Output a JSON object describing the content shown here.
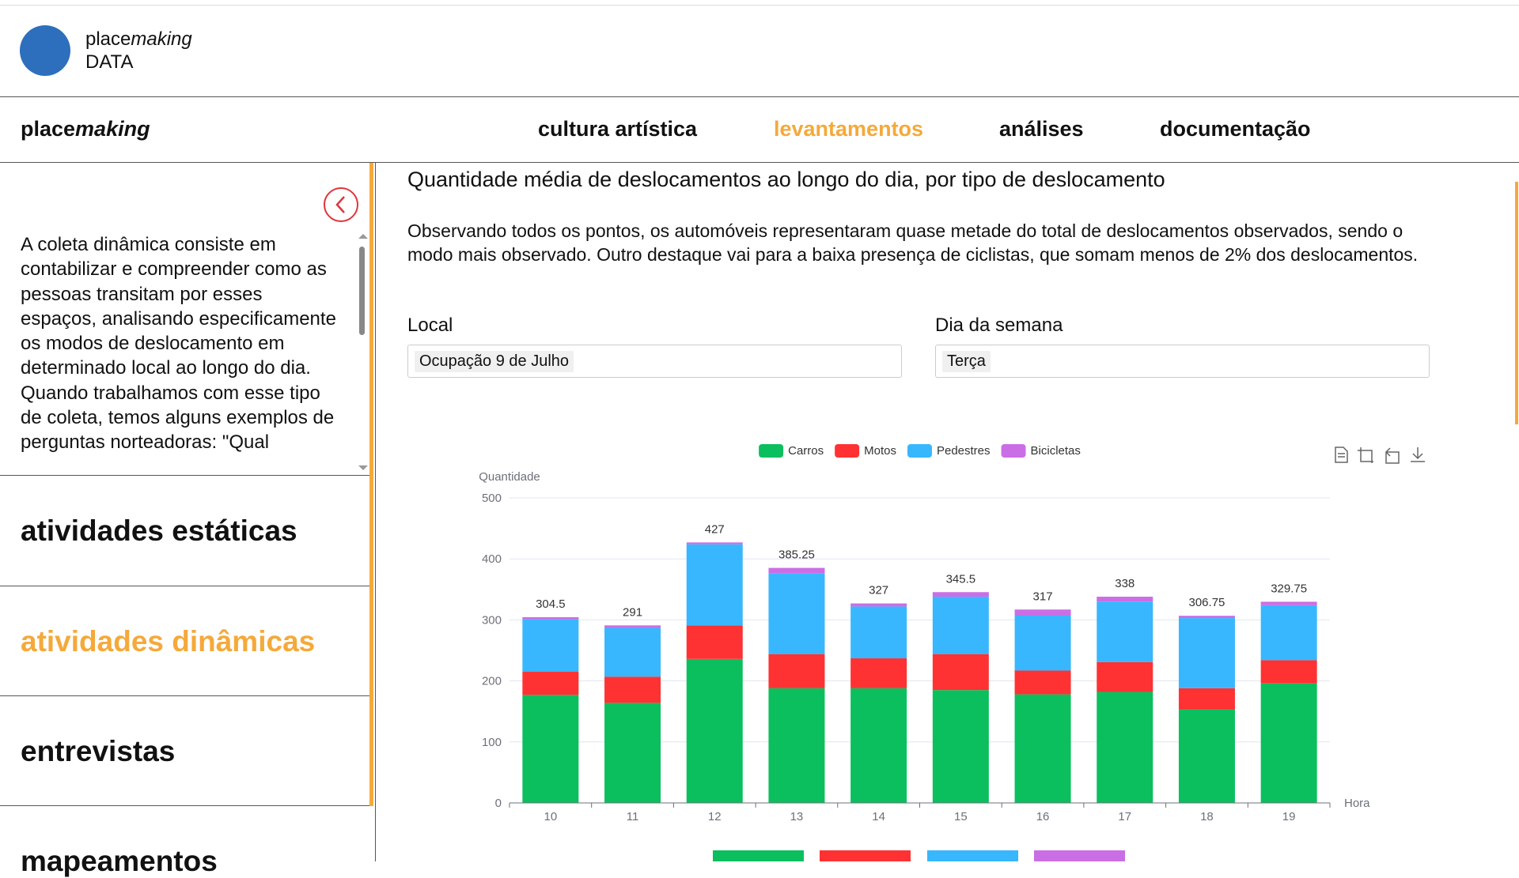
{
  "header": {
    "brand_a": "place",
    "brand_b": "making",
    "subtitle": "DATA"
  },
  "nav": {
    "brand_a": "place",
    "brand_b": "making",
    "items": [
      "cultura artística",
      "levantamentos",
      "análises",
      "documentação"
    ],
    "active": 1
  },
  "sidebar": {
    "text": "A coleta dinâmica consiste em contabilizar e compreender como as pessoas transitam por esses espaços, analisando especificamente os modos de deslocamento em determinado local ao longo do dia. Quando trabalhamos com esse tipo de coleta, temos alguns exemplos de perguntas norteadoras: \"Qual",
    "items": [
      "atividades estáticas",
      "atividades dinâmicas",
      "entrevistas",
      "mapeamentos"
    ],
    "active": 1
  },
  "main": {
    "title": "Quantidade média de deslocamentos ao longo do dia, por tipo de deslocamento",
    "description": "Observando todos os pontos, os automóveis representaram quase metade do total de deslocamentos observados, sendo o modo mais observado. Outro destaque vai para a baixa presença de ciclistas, que somam menos de 2% dos deslocamentos.",
    "filters": [
      {
        "label": "Local",
        "value": "Ocupação 9 de Julho"
      },
      {
        "label": "Dia da semana",
        "value": "Terça"
      }
    ]
  },
  "chart_data": {
    "type": "stacked-bar",
    "y_label": "Quantidade",
    "x_label": "Hora",
    "categories": [
      "10",
      "11",
      "12",
      "13",
      "14",
      "15",
      "16",
      "17",
      "18",
      "19"
    ],
    "series": [
      {
        "name": "Carros",
        "color": "#0bbf5e",
        "values": [
          177,
          164,
          236,
          188,
          188,
          185,
          178,
          182,
          153,
          196
        ]
      },
      {
        "name": "Motos",
        "color": "#ff3233",
        "values": [
          38,
          43,
          55,
          56,
          49,
          59,
          39,
          49,
          35,
          38
        ]
      },
      {
        "name": "Pedestres",
        "color": "#38b7fe",
        "values": [
          86,
          80,
          133,
          132,
          85,
          94,
          90,
          99,
          115,
          90
        ]
      },
      {
        "name": "Bicicletas",
        "color": "#ca6ee6",
        "values": [
          3.5,
          4,
          3,
          9.25,
          5,
          7.5,
          10,
          8,
          3.75,
          5.75
        ]
      }
    ],
    "totals": [
      304.5,
      291,
      427,
      385.25,
      327,
      345.5,
      317,
      338,
      306.75,
      329.75
    ],
    "ylim": [
      0,
      500
    ],
    "yticks": [
      0,
      100,
      200,
      300,
      400,
      500
    ],
    "grid": true
  }
}
